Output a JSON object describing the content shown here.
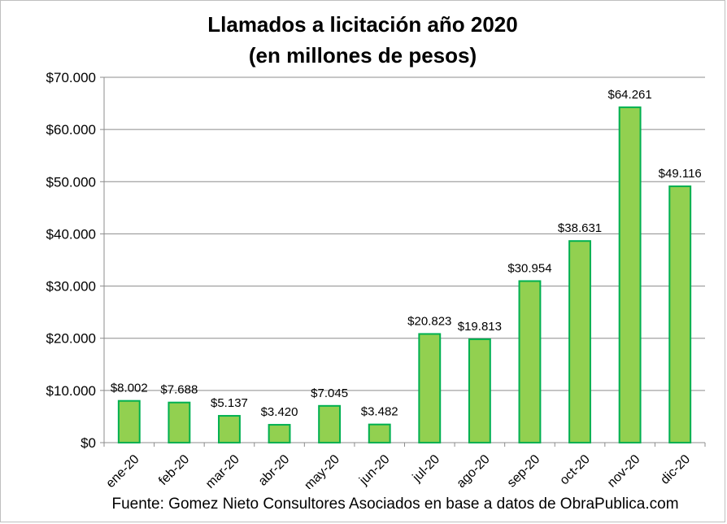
{
  "chart_data": {
    "type": "bar",
    "title": "Llamados a licitación año 2020",
    "subtitle": "(en millones de pesos)",
    "categories": [
      "ene-20",
      "feb-20",
      "mar-20",
      "abr-20",
      "may-20",
      "jun-20",
      "jul-20",
      "ago-20",
      "sep-20",
      "oct-20",
      "nov-20",
      "dic-20"
    ],
    "values": [
      8002,
      7688,
      5137,
      3420,
      7045,
      3482,
      20823,
      19813,
      30954,
      38631,
      64261,
      49116
    ],
    "data_labels": [
      "$8.002",
      "$7.688",
      "$5.137",
      "$3.420",
      "$7.045",
      "$3.482",
      "$20.823",
      "$19.813",
      "$30.954",
      "$38.631",
      "$64.261",
      "$49.116"
    ],
    "y_ticks": [
      0,
      10000,
      20000,
      30000,
      40000,
      50000,
      60000,
      70000
    ],
    "y_tick_labels": [
      "$0",
      "$10.000",
      "$20.000",
      "$30.000",
      "$40.000",
      "$50.000",
      "$60.000",
      "$70.000"
    ],
    "ylim": [
      0,
      70000
    ],
    "grid": true,
    "legend": "none",
    "xlabel": "",
    "ylabel": "",
    "bar_fill_color": "#92d050",
    "bar_edge_color": "#00b050",
    "source_text": "Fuente: Gomez Nieto Consultores Asociados en base a datos de ObraPublica.com"
  }
}
